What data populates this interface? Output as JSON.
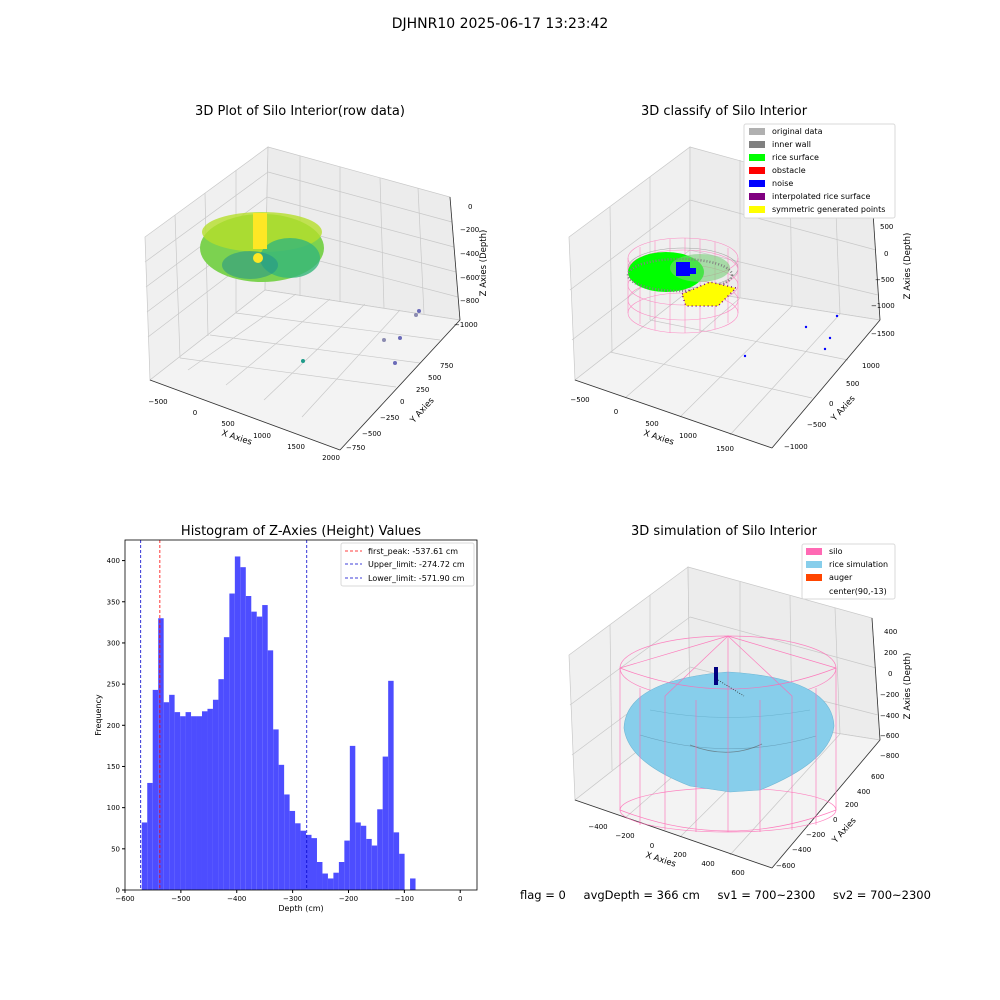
{
  "figure": {
    "suptitle": "DJHNR10 2025-06-17 13:23:42",
    "footer": {
      "flag": "flag = 0",
      "avg_depth": "avgDepth = 366 cm",
      "sv1": "sv1 = 700~2300",
      "sv2": "sv2 = 700~2300"
    }
  },
  "colors": {
    "hist_bar": "#4d4dff",
    "first_peak": "#ff0000",
    "limit": "#0000cc",
    "silo": "#ff69b4",
    "rice_simulation": "#87ceeb",
    "auger": "#ff4500",
    "rice_surface": "#00ff00",
    "noise": "#0000ff",
    "inner_wall": "#808080",
    "original_data": "#b0b0b0",
    "interpolated": "#800080",
    "symmetric": "#ffff00"
  },
  "chart_data": [
    {
      "type": "scatter",
      "title": "3D Plot of Silo Interior(row data)",
      "xlabel": "X Axies",
      "ylabel": "Y Axies",
      "zlabel": "Z Axies (Depth)",
      "x_ticks": [
        "−500",
        "0",
        "500",
        "1000",
        "1500",
        "2000"
      ],
      "y_ticks": [
        "−750",
        "−500",
        "−250",
        "0",
        "250",
        "500",
        "750"
      ],
      "z_ticks": [
        "0",
        "−200",
        "−400",
        "−600",
        "−800",
        "−1000"
      ]
    },
    {
      "type": "scatter",
      "title": "3D classify of Silo Interior",
      "xlabel": "X Axies",
      "ylabel": "Y Axies",
      "zlabel": "Z Axies (Depth)",
      "x_ticks": [
        "−500",
        "0",
        "500",
        "1000",
        "1500"
      ],
      "y_ticks": [
        "−1000",
        "−500",
        "0",
        "500",
        "1000"
      ],
      "z_ticks": [
        "500",
        "0",
        "−500",
        "−1000",
        "−1500"
      ],
      "legend": [
        "original data",
        "inner wall",
        "rice surface",
        "obstacle",
        "noise",
        "interpolated rice surface",
        "symmetric generated points"
      ],
      "legend_position": "top-right"
    },
    {
      "type": "bar",
      "title": "Histogram of Z-Axies (Height) Values",
      "xlabel": "Depth (cm)",
      "ylabel": "Frequency",
      "xlim": [
        -600,
        30
      ],
      "ylim": [
        0,
        425
      ],
      "x_ticks": [
        -600,
        -500,
        -400,
        -300,
        -200,
        -100,
        0
      ],
      "y_ticks": [
        0,
        50,
        100,
        150,
        200,
        250,
        300,
        350,
        400
      ],
      "bin_start": -570,
      "bin_width": 9.8,
      "values": [
        82,
        130,
        243,
        330,
        228,
        237,
        216,
        211,
        216,
        211,
        211,
        217,
        220,
        231,
        256,
        307,
        360,
        405,
        392,
        357,
        338,
        332,
        346,
        291,
        195,
        152,
        116,
        96,
        81,
        72,
        67,
        63,
        34,
        20,
        14,
        21,
        34,
        60,
        175,
        82,
        78,
        62,
        54,
        98,
        162,
        254,
        70,
        44,
        0,
        14
      ],
      "vlines": [
        {
          "name": "first_peak: -537.61 cm",
          "x": -537.61,
          "color": "red"
        },
        {
          "name": "Upper_limit: -274.72 cm",
          "x": -274.72,
          "color": "blue"
        },
        {
          "name": "Lower_limit: -571.90 cm",
          "x": -571.9,
          "color": "blue"
        }
      ],
      "legend_position": "top-right"
    },
    {
      "type": "surface",
      "title": "3D simulation of Silo Interior",
      "xlabel": "X Axies",
      "ylabel": "Y Axies",
      "zlabel": "Z Axies (Depth)",
      "x_ticks": [
        "−400",
        "−200",
        "0",
        "200",
        "400",
        "600"
      ],
      "y_ticks": [
        "−600",
        "−400",
        "−200",
        "0",
        "200",
        "400",
        "600"
      ],
      "z_ticks": [
        "400",
        "200",
        "0",
        "−200",
        "−400",
        "−600",
        "−800"
      ],
      "legend": [
        "silo",
        "rice simulation",
        "auger",
        "center(90,-13)"
      ],
      "legend_position": "top-right"
    }
  ]
}
